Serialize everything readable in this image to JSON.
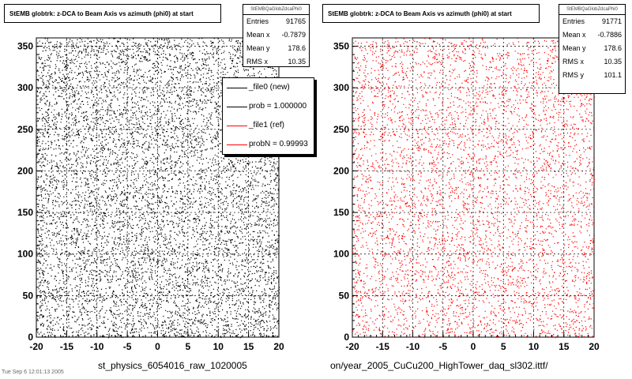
{
  "panels": [
    {
      "title": "StEMB globtrk: z-DCA to Beam Axis vs azimuth (phi0) at start",
      "stats": {
        "name": "StEMBQaGlobZdcaPhi0",
        "rows": [
          {
            "label": "Entries",
            "value": "91765"
          },
          {
            "label": "Mean x",
            "value": "-0.7879"
          },
          {
            "label": "Mean y",
            "value": "178.6"
          },
          {
            "label": "RMS x",
            "value": "10.35"
          }
        ]
      },
      "footer": "st_physics_6054016_raw_1020005"
    },
    {
      "title": "StEMB globtrk: z-DCA to Beam Axis vs azimuth (phi0) at start",
      "stats": {
        "name": "StEMBQaGlobZdcaPhi0",
        "rows": [
          {
            "label": "Entries",
            "value": "91771"
          },
          {
            "label": "Mean x",
            "value": "-0.7886"
          },
          {
            "label": "Mean y",
            "value": "178.6"
          },
          {
            "label": "RMS x",
            "value": "10.35"
          },
          {
            "label": "RMS y",
            "value": "101.1"
          }
        ]
      },
      "footer": "on/year_2005_CuCu200_HighTower_daq_sl302.ittf/"
    }
  ],
  "legend": {
    "entries": [
      {
        "label": "_file0 (new)",
        "color": "#000000"
      },
      {
        "label": "prob = 1.000000",
        "color": "#000000"
      },
      {
        "label": "_file1 (ref)",
        "color": "#ff0000"
      },
      {
        "label": "probN = 0.99993",
        "color": "#ff0000"
      }
    ]
  },
  "corner_note": "Tue Sep  6 12:01:13 2005",
  "chart_data": [
    {
      "type": "scatter",
      "title": "StEMB globtrk: z-DCA to Beam Axis vs azimuth (phi0) at start",
      "xlabel": "",
      "ylabel": "",
      "xlim": [
        -20,
        20
      ],
      "ylim": [
        0,
        360
      ],
      "xticks": [
        "-20",
        "-15",
        "-10",
        "-5",
        "0",
        "5",
        "10",
        "15",
        "20"
      ],
      "yticks": [
        "0",
        "50",
        "100",
        "150",
        "200",
        "250",
        "300",
        "350"
      ],
      "grid": true,
      "color": "#000000",
      "entries": 91765,
      "mean_x": -0.7879,
      "mean_y": 178.6,
      "rms_x": 10.35,
      "distribution": "approximately uniform in x over [-20,20] and y over [0,360]"
    },
    {
      "type": "scatter",
      "title": "StEMB globtrk: z-DCA to Beam Axis vs azimuth (phi0) at start",
      "xlabel": "",
      "ylabel": "",
      "xlim": [
        -20,
        20
      ],
      "ylim": [
        0,
        360
      ],
      "xticks": [
        "-20",
        "-15",
        "-10",
        "-5",
        "0",
        "5",
        "10",
        "15",
        "20"
      ],
      "yticks": [
        "0",
        "50",
        "100",
        "150",
        "200",
        "250",
        "300",
        "350"
      ],
      "grid": true,
      "color": "#ff0000",
      "entries": 91771,
      "mean_x": -0.7886,
      "mean_y": 178.6,
      "rms_x": 10.35,
      "rms_y": 101.1,
      "distribution": "approximately uniform in x over [-20,20] and y over [0,360]"
    }
  ]
}
